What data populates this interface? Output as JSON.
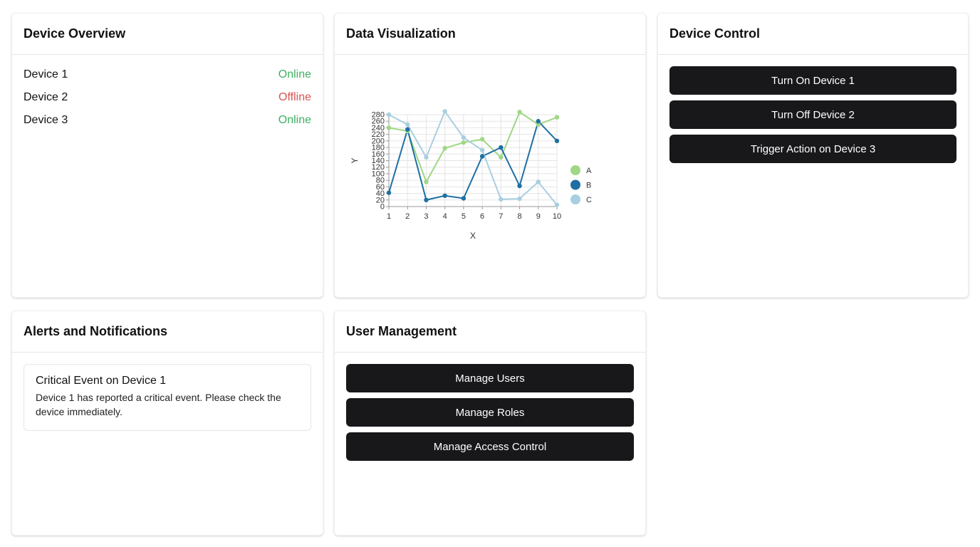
{
  "device_overview": {
    "title": "Device Overview",
    "devices": [
      {
        "name": "Device 1",
        "status": "Online"
      },
      {
        "name": "Device 2",
        "status": "Offline"
      },
      {
        "name": "Device 3",
        "status": "Online"
      }
    ]
  },
  "data_visualization": {
    "title": "Data Visualization"
  },
  "device_control": {
    "title": "Device Control",
    "buttons": [
      "Turn On Device 1",
      "Turn Off Device 2",
      "Trigger Action on Device 3"
    ]
  },
  "alerts": {
    "title": "Alerts and Notifications",
    "items": [
      {
        "title": "Critical Event on Device 1",
        "text": "Device 1 has reported a critical event. Please check the device immediately."
      }
    ]
  },
  "user_management": {
    "title": "User Management",
    "buttons": [
      "Manage Users",
      "Manage Roles",
      "Manage Access Control"
    ]
  },
  "colors": {
    "online": "#3fb062",
    "offline": "#d9534f",
    "button_bg": "#18181b"
  },
  "chart_data": {
    "type": "line",
    "x": [
      1,
      2,
      3,
      4,
      5,
      6,
      7,
      8,
      9,
      10
    ],
    "xlabel": "X",
    "ylabel": "Y",
    "ylim": [
      0,
      280
    ],
    "yticks": [
      0,
      20,
      40,
      60,
      80,
      100,
      120,
      140,
      160,
      180,
      200,
      220,
      240,
      260,
      280
    ],
    "legend_position": "right",
    "series": [
      {
        "name": "A",
        "color": "#a0d785",
        "values": [
          240,
          230,
          75,
          178,
          195,
          205,
          150,
          288,
          250,
          272
        ]
      },
      {
        "name": "B",
        "color": "#1f6fa3",
        "values": [
          42,
          235,
          20,
          33,
          25,
          153,
          180,
          63,
          260,
          200
        ]
      },
      {
        "name": "C",
        "color": "#a8cfe0",
        "values": [
          280,
          250,
          150,
          290,
          210,
          172,
          22,
          24,
          75,
          5
        ]
      }
    ]
  }
}
